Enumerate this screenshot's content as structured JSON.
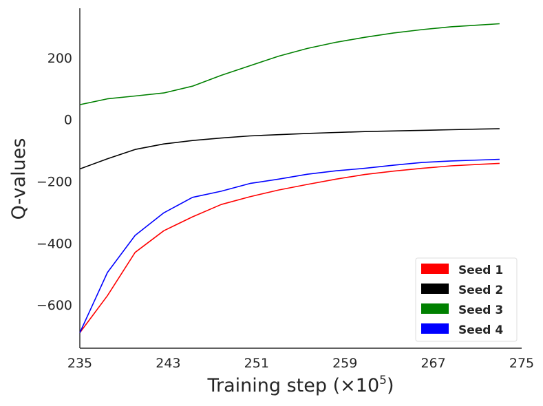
{
  "chart_data": {
    "type": "line",
    "title": "",
    "xlabel": "Training step (×10",
    "xlabel_exponent": "5",
    "xlabel_suffix": ")",
    "ylabel": "Q-values",
    "xlim": [
      235,
      275
    ],
    "ylim": [
      -740,
      360
    ],
    "xticks": [
      235,
      243,
      251,
      259,
      267,
      275
    ],
    "yticks": [
      200,
      0,
      -200,
      -400,
      -600
    ],
    "ytick_labels": [
      "200",
      "0",
      "−200",
      "−400",
      "−600"
    ],
    "grid": false,
    "legend_position": "lower-right",
    "x": [
      235,
      237.5,
      240,
      242.6,
      245.2,
      247.8,
      250.4,
      253,
      255.6,
      258.2,
      260.8,
      263.4,
      266,
      268.6,
      271.2,
      273
    ],
    "series": [
      {
        "name": "Seed 1",
        "color": "#ff0000",
        "values": [
          -690,
          -570,
          -430,
          -360,
          -315,
          -275,
          -250,
          -228,
          -210,
          -193,
          -178,
          -167,
          -158,
          -150,
          -145,
          -142
        ]
      },
      {
        "name": "Seed 2",
        "color": "#000000",
        "values": [
          -160,
          -127,
          -97,
          -79,
          -68,
          -60,
          -53,
          -49,
          -45,
          -42,
          -39,
          -37,
          -35,
          -33,
          -31,
          -30
        ]
      },
      {
        "name": "Seed 3",
        "color": "#008000",
        "values": [
          48,
          67,
          76,
          86,
          108,
          143,
          174,
          205,
          230,
          250,
          266,
          280,
          291,
          300,
          306,
          310
        ]
      },
      {
        "name": "Seed 4",
        "color": "#0000ff",
        "values": [
          -690,
          -495,
          -375,
          -302,
          -252,
          -232,
          -207,
          -193,
          -177,
          -166,
          -158,
          -148,
          -139,
          -134,
          -131,
          -129
        ]
      }
    ]
  }
}
